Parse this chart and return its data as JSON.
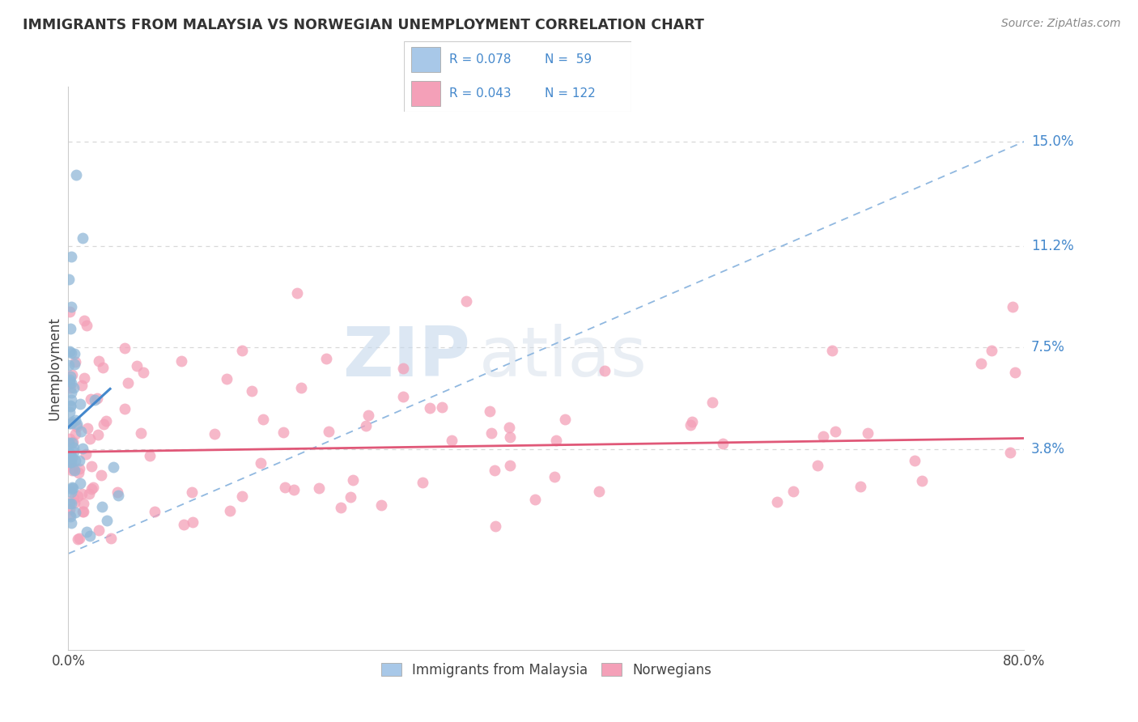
{
  "title": "IMMIGRANTS FROM MALAYSIA VS NORWEGIAN UNEMPLOYMENT CORRELATION CHART",
  "source": "Source: ZipAtlas.com",
  "ylabel": "Unemployment",
  "ytick_labels": [
    "3.8%",
    "7.5%",
    "11.2%",
    "15.0%"
  ],
  "ytick_values": [
    0.038,
    0.075,
    0.112,
    0.15
  ],
  "xmax": 0.8,
  "ymin": -0.035,
  "ymax": 0.17,
  "watermark_zip": "ZIP",
  "watermark_atlas": "atlas",
  "legend_blue_R": "R = 0.078",
  "legend_blue_N": "N =  59",
  "legend_pink_R": "R = 0.043",
  "legend_pink_N": "N = 122",
  "label_blue": "Immigrants from Malaysia",
  "label_pink": "Norwegians",
  "blue_color": "#a8c8e8",
  "pink_color": "#f4a0b8",
  "blue_dot_color": "#90b8d8",
  "pink_dot_color": "#f4a0b8",
  "blue_line_color": "#4488cc",
  "pink_line_color": "#e05878",
  "dashed_line_color": "#90b8e0",
  "right_label_color": "#4488cc",
  "grid_color": "#d8d8d8"
}
